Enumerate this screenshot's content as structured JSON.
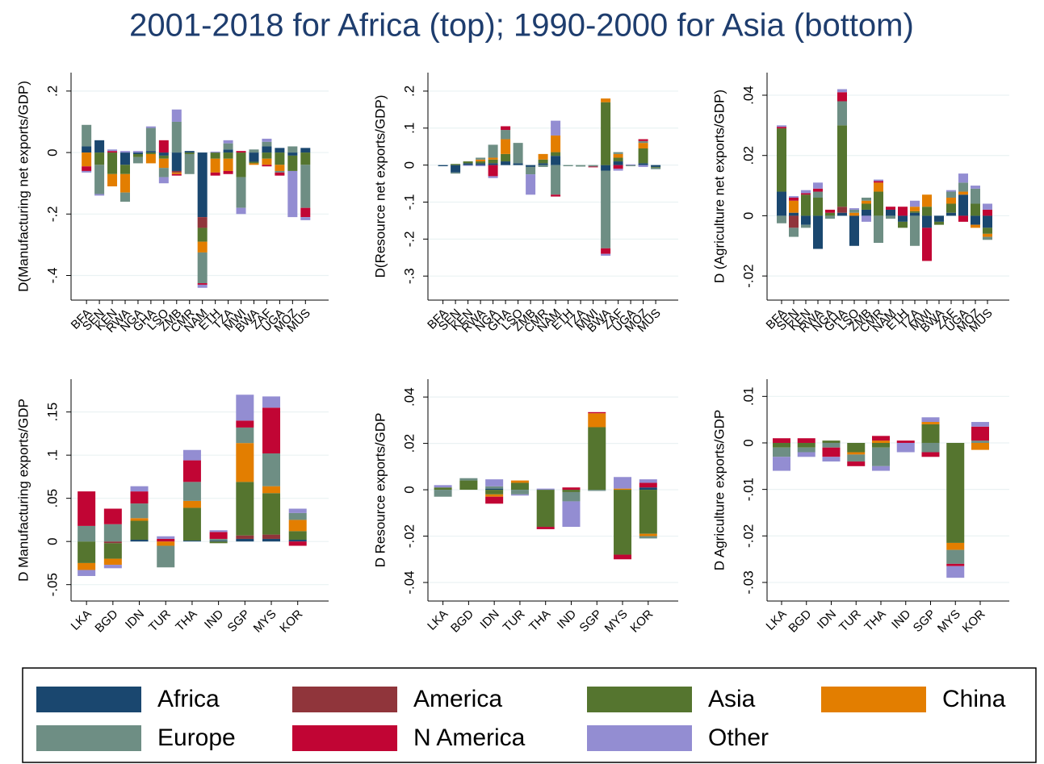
{
  "title": "2001-2018 for Africa (top); 1990-2000 for Asia (bottom)",
  "legend": "bottom",
  "chart_data": [
    {
      "type": "stacked_bar",
      "y_label": "D(Manufacturing net exports/GDP)",
      "categories": [
        "BFA",
        "SEN",
        "KEN",
        "RWA",
        "NGA",
        "GHA",
        "LSO",
        "ZMB",
        "CMR",
        "NAM",
        "ETH",
        "TZA",
        "MWI",
        "BWA",
        "ZAF",
        "UGA",
        "MOZ",
        "MUS"
      ],
      "ylim": [
        -0.48,
        0.26
      ],
      "yticks": [
        {
          "value": -0.4,
          "label": "-.4"
        },
        {
          "value": -0.2,
          "label": "-.2"
        },
        0,
        {
          "value": 0.2,
          "label": ".2"
        }
      ],
      "grid": true,
      "series": [
        {
          "name": "Africa",
          "color": "#1a476f",
          "values": [
            0.02,
            0.04,
            0,
            -0.04,
            -0.005,
            0.005,
            -0.01,
            -0.06,
            0.005,
            -0.21,
            0,
            0.01,
            0,
            -0.03,
            0.02,
            0.015,
            -0.01,
            0.015
          ]
        },
        {
          "name": "America",
          "color": "#90353b",
          "values": [
            0,
            0,
            0,
            0,
            0,
            0,
            0,
            -0.005,
            0,
            -0.035,
            0,
            0,
            0,
            0,
            0,
            0,
            0,
            0
          ]
        },
        {
          "name": "Asia",
          "color": "#55752f",
          "values": [
            0,
            -0.04,
            -0.07,
            -0.03,
            -0.01,
            -0.005,
            -0.01,
            0,
            -0.005,
            -0.045,
            -0.02,
            -0.02,
            -0.08,
            -0.005,
            -0.02,
            -0.04,
            -0.05,
            -0.04
          ]
        },
        {
          "name": "China",
          "color": "#e37e00",
          "values": [
            -0.045,
            0,
            -0.04,
            -0.06,
            0,
            -0.03,
            -0.03,
            -0.005,
            0,
            -0.035,
            -0.045,
            -0.04,
            0,
            -0.005,
            -0.02,
            -0.02,
            0,
            0
          ]
        },
        {
          "name": "Europe",
          "color": "#6e8e84",
          "values": [
            0.07,
            -0.095,
            0,
            -0.03,
            -0.02,
            0.075,
            -0.03,
            0.1,
            -0.065,
            -0.1,
            0,
            0.02,
            -0.1,
            0.01,
            0.015,
            -0.005,
            0.02,
            -0.14
          ]
        },
        {
          "name": "N America",
          "color": "#c10534",
          "values": [
            -0.015,
            0,
            0.005,
            0,
            0,
            0,
            0.04,
            -0.005,
            0,
            -0.005,
            -0.01,
            -0.01,
            0.005,
            0,
            -0.005,
            -0.01,
            0,
            -0.03
          ]
        },
        {
          "name": "Other",
          "color": "#938dd2",
          "values": [
            -0.005,
            -0.005,
            0.005,
            0.005,
            0.005,
            0.005,
            -0.02,
            0.04,
            0,
            -0.01,
            0.003,
            0.01,
            -0.02,
            0,
            0.01,
            0,
            -0.15,
            -0.01
          ]
        }
      ]
    },
    {
      "type": "stacked_bar",
      "y_label": "D(Resource net exports/GDP)",
      "categories": [
        "BFA",
        "SEN",
        "KEN",
        "RWA",
        "NGA",
        "GHA",
        "LSO",
        "ZMB",
        "CMR",
        "NAM",
        "ETH",
        "TZA",
        "MWI",
        "BWA",
        "ZAF",
        "UGA",
        "MOZ",
        "MUS"
      ],
      "ylim": [
        -0.365,
        0.25
      ],
      "yticks": [
        {
          "value": -0.3,
          "label": "-.3"
        },
        {
          "value": -0.2,
          "label": "-.2"
        },
        {
          "value": -0.1,
          "label": "-.1"
        },
        0,
        {
          "value": 0.1,
          "label": ".1"
        },
        {
          "value": 0.2,
          "label": ".2"
        }
      ],
      "grid": true,
      "series": [
        {
          "name": "Africa",
          "color": "#1a476f",
          "values": [
            -0.003,
            -0.02,
            0.005,
            0.005,
            0.005,
            0.01,
            0.005,
            -0.005,
            0.005,
            0.025,
            0,
            0,
            0,
            -0.015,
            0.01,
            0,
            0.005,
            -0.005
          ]
        },
        {
          "name": "America",
          "color": "#90353b",
          "values": [
            0,
            0,
            0,
            0,
            0,
            0,
            0,
            0,
            0,
            0,
            0,
            0,
            0,
            0,
            0,
            0,
            0,
            0
          ]
        },
        {
          "name": "Asia",
          "color": "#55752f",
          "values": [
            0,
            0.003,
            0.005,
            0.005,
            0.01,
            0.02,
            0,
            0,
            0.01,
            0.01,
            0,
            0,
            0,
            0.17,
            0.01,
            0,
            0.04,
            -0.002
          ]
        },
        {
          "name": "China",
          "color": "#e37e00",
          "values": [
            0,
            0,
            0,
            0.005,
            0.005,
            0.04,
            0,
            0,
            0.015,
            0.045,
            0,
            0,
            0,
            0.01,
            0.01,
            0,
            0.015,
            0
          ]
        },
        {
          "name": "Europe",
          "color": "#6e8e84",
          "values": [
            0,
            -0.003,
            0,
            0.005,
            0.035,
            0.025,
            0.055,
            -0.02,
            -0.005,
            -0.08,
            -0.003,
            -0.004,
            -0.004,
            -0.21,
            0.005,
            -0.003,
            0.005,
            -0.004
          ]
        },
        {
          "name": "N America",
          "color": "#c10534",
          "values": [
            0,
            0,
            0,
            0,
            -0.03,
            0.01,
            0,
            0,
            0,
            -0.005,
            0,
            0,
            -0.002,
            -0.015,
            -0.01,
            0,
            0.005,
            0
          ]
        },
        {
          "name": "Other",
          "color": "#938dd2",
          "values": [
            0,
            0,
            -0.002,
            -0.003,
            -0.005,
            0,
            0,
            -0.055,
            0,
            0.04,
            0,
            0,
            0,
            -0.005,
            -0.005,
            0.002,
            -0.005,
            0
          ]
        }
      ]
    },
    {
      "type": "stacked_bar",
      "y_label": "D (Agriculture net exports/GDP)",
      "categories": [
        "BFA",
        "SEN",
        "KEN",
        "RWA",
        "NGA",
        "GHA",
        "LSO",
        "ZMB",
        "CMR",
        "NAM",
        "ETH",
        "TZA",
        "MWI",
        "BWA",
        "ZAF",
        "UGA",
        "MOZ",
        "MUS"
      ],
      "ylim": [
        -0.028,
        0.0475
      ],
      "yticks": [
        {
          "value": -0.02,
          "label": "-.02"
        },
        0,
        {
          "value": 0.02,
          "label": ".02"
        },
        {
          "value": 0.04,
          "label": ".04"
        }
      ],
      "grid": true,
      "series": [
        {
          "name": "Africa",
          "color": "#1a476f",
          "values": [
            0.008,
            0.001,
            -0.003,
            -0.011,
            0,
            0.001,
            -0.01,
            0.002,
            0,
            0.002,
            -0.002,
            0.001,
            -0.004,
            -0.002,
            0.001,
            0.007,
            -0.003,
            -0.004
          ]
        },
        {
          "name": "America",
          "color": "#90353b",
          "values": [
            0,
            -0.004,
            0,
            0,
            0,
            0.002,
            0,
            0,
            0,
            0,
            0,
            0,
            0,
            0,
            0,
            0,
            0,
            0
          ]
        },
        {
          "name": "Asia",
          "color": "#55752f",
          "values": [
            0.021,
            0,
            0.007,
            0.006,
            0.001,
            0.027,
            0,
            0.002,
            0.008,
            0,
            -0.002,
            0.0005,
            0.003,
            -0.001,
            0.003,
            0,
            0.004,
            -0.002
          ]
        },
        {
          "name": "China",
          "color": "#e37e00",
          "values": [
            0,
            0.004,
            0,
            0,
            0,
            0,
            0.001,
            0.001,
            0.003,
            0,
            0,
            0.0015,
            0.004,
            0,
            0.002,
            0.001,
            -0.001,
            -0.001
          ]
        },
        {
          "name": "Europe",
          "color": "#6e8e84",
          "values": [
            -0.0025,
            -0.003,
            -0.001,
            0.002,
            -0.001,
            0.008,
            0.001,
            0.001,
            -0.009,
            -0.001,
            0,
            -0.01,
            0,
            0,
            0.002,
            0.003,
            0.005,
            -0.001
          ]
        },
        {
          "name": "N America",
          "color": "#c10534",
          "values": [
            0.0005,
            0.001,
            0.0005,
            0.001,
            0.001,
            0.003,
            0,
            0,
            0.0005,
            0.001,
            0.003,
            0,
            -0.011,
            0,
            0,
            -0.002,
            0,
            0.002
          ]
        },
        {
          "name": "Other",
          "color": "#938dd2",
          "values": [
            0.0005,
            0.0005,
            0.001,
            0.002,
            0,
            0.001,
            0.0005,
            -0.002,
            0.0005,
            0,
            0,
            0.002,
            0,
            0,
            0.0005,
            0.003,
            0.001,
            0.002
          ]
        }
      ]
    },
    {
      "type": "stacked_bar",
      "y_label": "D Manufacturing exports/GDP",
      "categories": [
        "LKA",
        "BGD",
        "IDN",
        "TUR",
        "THA",
        "IND",
        "SGP",
        "MYS",
        "KOR"
      ],
      "ylim": [
        -0.069,
        0.188
      ],
      "yticks": [
        {
          "value": -0.05,
          "label": "-.05"
        },
        0,
        {
          "value": 0.05,
          "label": ".05"
        },
        {
          "value": 0.1,
          "label": ".1"
        },
        {
          "value": 0.15,
          "label": ".15"
        }
      ],
      "grid": true,
      "series": [
        {
          "name": "Africa",
          "color": "#1a476f",
          "values": [
            0,
            0,
            0.002,
            0,
            0.001,
            0.001,
            0.003,
            0.003,
            0.002
          ]
        },
        {
          "name": "America",
          "color": "#90353b",
          "values": [
            0,
            -0.002,
            0,
            0,
            0,
            0,
            0.004,
            0.005,
            0
          ]
        },
        {
          "name": "Asia",
          "color": "#55752f",
          "values": [
            -0.025,
            -0.018,
            0.022,
            0,
            0.038,
            -0.002,
            0.062,
            0.048,
            0.01
          ]
        },
        {
          "name": "China",
          "color": "#e37e00",
          "values": [
            -0.008,
            -0.007,
            0.003,
            -0.005,
            0.008,
            0,
            0.045,
            0.008,
            0.013
          ]
        },
        {
          "name": "Europe",
          "color": "#6e8e84",
          "values": [
            0.018,
            0.02,
            0.017,
            -0.025,
            0.022,
            0.002,
            0.018,
            0.038,
            0.008
          ]
        },
        {
          "name": "N America",
          "color": "#c10534",
          "values": [
            0.04,
            0.018,
            0.014,
            0.003,
            0.025,
            0.008,
            0.008,
            0.053,
            -0.005
          ]
        },
        {
          "name": "Other",
          "color": "#938dd2",
          "values": [
            -0.007,
            -0.004,
            0.006,
            0.003,
            0.012,
            0.002,
            0.03,
            0.013,
            0.005
          ]
        }
      ]
    },
    {
      "type": "stacked_bar",
      "y_label": "D Resource exports/GDP",
      "categories": [
        "LKA",
        "BGD",
        "IDN",
        "TUR",
        "THA",
        "IND",
        "SGP",
        "MYS",
        "KOR"
      ],
      "ylim": [
        -0.048,
        0.0477
      ],
      "yticks": [
        {
          "value": -0.04,
          "label": "-.04"
        },
        {
          "value": -0.02,
          "label": "-.02"
        },
        0,
        {
          "value": 0.02,
          "label": ".02"
        },
        {
          "value": 0.04,
          "label": ".04"
        }
      ],
      "grid": true,
      "series": [
        {
          "name": "Africa",
          "color": "#1a476f",
          "values": [
            0,
            0,
            0.0005,
            0,
            0,
            0,
            0,
            0,
            0.001
          ]
        },
        {
          "name": "America",
          "color": "#90353b",
          "values": [
            0,
            0,
            0,
            0,
            0,
            0,
            0,
            0,
            0
          ]
        },
        {
          "name": "Asia",
          "color": "#55752f",
          "values": [
            0.001,
            0.004,
            -0.002,
            0.003,
            -0.016,
            -0.001,
            0.027,
            -0.028,
            -0.019
          ]
        },
        {
          "name": "China",
          "color": "#e37e00",
          "values": [
            0,
            0,
            -0.001,
            0.001,
            0,
            0,
            0.006,
            0.0005,
            -0.001
          ]
        },
        {
          "name": "Europe",
          "color": "#6e8e84",
          "values": [
            -0.003,
            0.001,
            0.001,
            -0.002,
            0,
            -0.004,
            -0.0005,
            0,
            -0.001
          ]
        },
        {
          "name": "N America",
          "color": "#c10534",
          "values": [
            0,
            0,
            -0.003,
            0,
            -0.001,
            0.001,
            0.0005,
            -0.002,
            0.002
          ]
        },
        {
          "name": "Other",
          "color": "#938dd2",
          "values": [
            0.001,
            0,
            0.003,
            -0.0005,
            0.0005,
            -0.011,
            0,
            0.005,
            0.0015
          ]
        }
      ]
    },
    {
      "type": "stacked_bar",
      "y_label": "D Agriculture exports/GDP",
      "categories": [
        "LKA",
        "BGD",
        "IDN",
        "TUR",
        "THA",
        "IND",
        "SGP",
        "MYS",
        "KOR"
      ],
      "ylim": [
        -0.034,
        0.0137
      ],
      "yticks": [
        {
          "value": -0.03,
          "label": "-.03"
        },
        {
          "value": -0.02,
          "label": "-.02"
        },
        {
          "value": -0.01,
          "label": "-.01"
        },
        0,
        {
          "value": 0.01,
          "label": ".01"
        }
      ],
      "grid": true,
      "series": [
        {
          "name": "Africa",
          "color": "#1a476f",
          "values": [
            0,
            0,
            0,
            0,
            0,
            0,
            0,
            0,
            0
          ]
        },
        {
          "name": "America",
          "color": "#90353b",
          "values": [
            0,
            0,
            0,
            0,
            0,
            0,
            0,
            0,
            0
          ]
        },
        {
          "name": "Asia",
          "color": "#55752f",
          "values": [
            -0.001,
            -0.001,
            0.0005,
            -0.002,
            -0.001,
            0,
            0.004,
            -0.0215,
            0
          ]
        },
        {
          "name": "China",
          "color": "#e37e00",
          "values": [
            0,
            0,
            0,
            -0.0005,
            0.0005,
            0,
            0.0005,
            -0.0015,
            -0.0015
          ]
        },
        {
          "name": "Europe",
          "color": "#6e8e84",
          "values": [
            -0.002,
            -0.001,
            -0.001,
            -0.0015,
            -0.004,
            0,
            -0.002,
            -0.003,
            0.0005
          ]
        },
        {
          "name": "N America",
          "color": "#c10534",
          "values": [
            0.001,
            0.001,
            -0.002,
            -0.001,
            0.001,
            0.0005,
            -0.001,
            -0.0005,
            0.003
          ]
        },
        {
          "name": "Other",
          "color": "#938dd2",
          "values": [
            -0.003,
            -0.001,
            -0.001,
            0,
            -0.001,
            -0.002,
            0.001,
            -0.0025,
            0.001
          ]
        }
      ]
    }
  ]
}
